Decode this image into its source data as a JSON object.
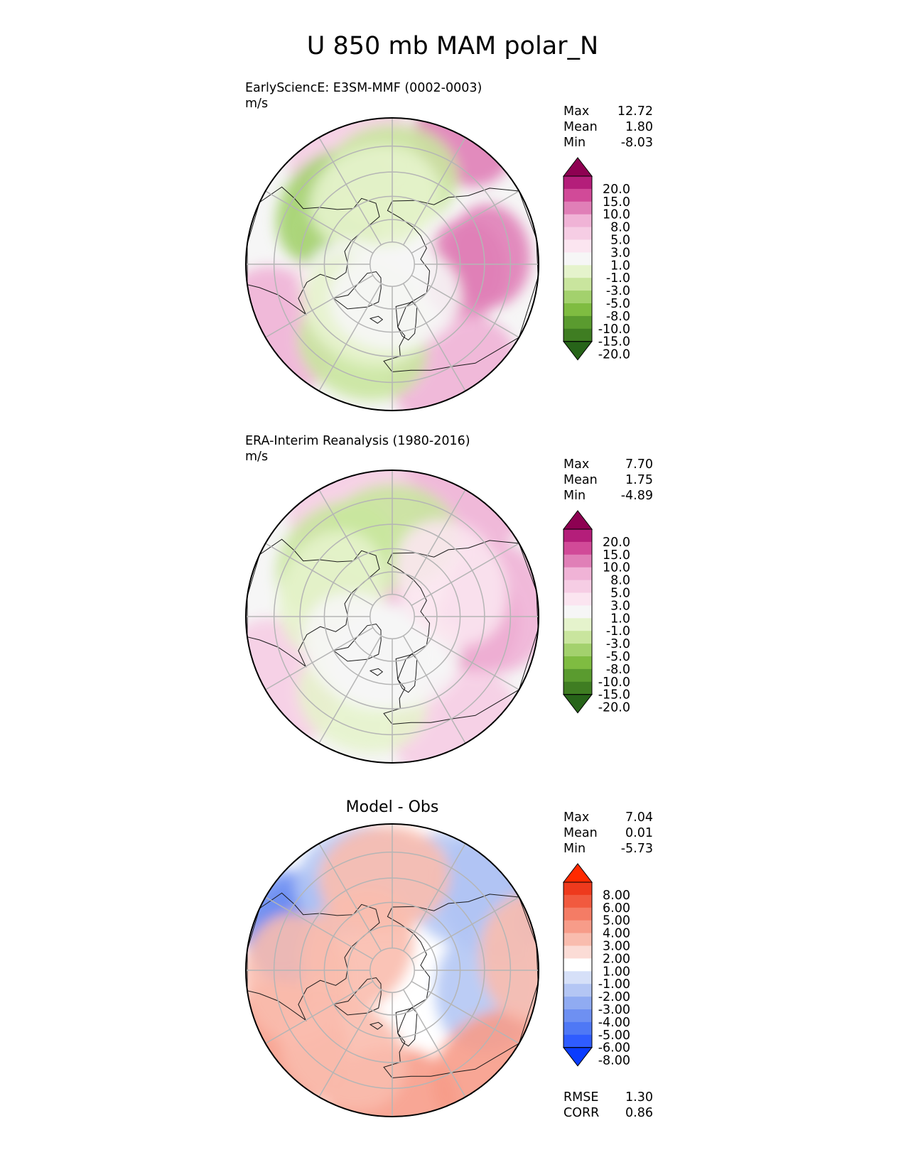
{
  "figure_title": "U 850 mb MAM polar_N",
  "colors": {
    "pink_green": [
      "#276419",
      "#3f7d22",
      "#5a9b2f",
      "#7fbc41",
      "#a3d16d",
      "#c9e59e",
      "#e5f3cc",
      "#f6f6f6",
      "#fbe5f0",
      "#f6cde4",
      "#f0b3d6",
      "#e07fb7",
      "#d14a98",
      "#b41e7a",
      "#8e0152"
    ],
    "blue_red": [
      "#0a3cff",
      "#2f5cff",
      "#4f78f5",
      "#6e90f2",
      "#90abf2",
      "#b4c6f4",
      "#d6e0f8",
      "#ffffff",
      "#fbdcd6",
      "#f9bcae",
      "#f79c89",
      "#f47c65",
      "#f15a3f",
      "#ee3a1d",
      "#ff2a00"
    ],
    "grid": "#b5b5b5",
    "coast": "#1a1a1a"
  },
  "chart_data": [
    {
      "type": "heatmap",
      "projection": "north polar stereographic",
      "title": "EarlySciencE: E3SM-MMF (0002-0003)",
      "units": "m/s",
      "stats": [
        {
          "label": "Max",
          "value": "12.72"
        },
        {
          "label": "Mean",
          "value": "1.80"
        },
        {
          "label": "Min",
          "value": "-8.03"
        }
      ],
      "colorbar_ticks": [
        "20.0",
        "15.0",
        "10.0",
        "8.0",
        "5.0",
        "3.0",
        "1.0",
        "-1.0",
        "-3.0",
        "-5.0",
        "-8.0",
        "-10.0",
        "-15.0",
        "-20.0"
      ],
      "colormap": "pink_green",
      "lat_rings": [
        80,
        70,
        60,
        50,
        40,
        30
      ],
      "lon_lines": [
        0,
        30,
        60,
        90,
        120,
        150,
        180,
        210,
        240,
        270,
        300,
        330
      ],
      "field": [
        {
          "lon": 85,
          "lat": 58,
          "level": 11
        },
        {
          "lon": 95,
          "lat": 48,
          "level": 11
        },
        {
          "lon": 150,
          "lat": 32,
          "level": 11
        },
        {
          "lon": 30,
          "lat": 38,
          "level": 10
        },
        {
          "lon": 300,
          "lat": 36,
          "level": 10
        },
        {
          "lon": 200,
          "lat": 40,
          "level": 9
        },
        {
          "lon": 260,
          "lat": 70,
          "level": 8
        },
        {
          "lon": 255,
          "lat": 85,
          "level": 7
        },
        {
          "lon": 225,
          "lat": 55,
          "level": 4
        },
        {
          "lon": 180,
          "lat": 52,
          "level": 5
        },
        {
          "lon": 195,
          "lat": 60,
          "level": 6
        },
        {
          "lon": 340,
          "lat": 52,
          "level": 5
        },
        {
          "lon": 320,
          "lat": 70,
          "level": 7
        },
        {
          "lon": 330,
          "lat": 66,
          "level": 6
        },
        {
          "lon": 5,
          "lat": 75,
          "level": 7
        }
      ]
    },
    {
      "type": "heatmap",
      "projection": "north polar stereographic",
      "title": "ERA-Interim Reanalysis (1980-2016)",
      "units": "m/s",
      "stats": [
        {
          "label": "Max",
          "value": "7.70"
        },
        {
          "label": "Mean",
          "value": "1.75"
        },
        {
          "label": "Min",
          "value": "-4.89"
        }
      ],
      "colorbar_ticks": [
        "20.0",
        "15.0",
        "10.0",
        "8.0",
        "5.0",
        "3.0",
        "1.0",
        "-1.0",
        "-3.0",
        "-5.0",
        "-8.0",
        "-10.0",
        "-15.0",
        "-20.0"
      ],
      "colormap": "pink_green",
      "lat_rings": [
        80,
        70,
        60,
        50,
        40,
        30
      ],
      "lon_lines": [
        0,
        30,
        60,
        90,
        120,
        150,
        180,
        210,
        240,
        270,
        300,
        330
      ],
      "field": [
        {
          "lon": 85,
          "lat": 52,
          "level": 11
        },
        {
          "lon": 95,
          "lat": 45,
          "level": 10
        },
        {
          "lon": 150,
          "lat": 32,
          "level": 10
        },
        {
          "lon": 30,
          "lat": 38,
          "level": 9
        },
        {
          "lon": 300,
          "lat": 36,
          "level": 9
        },
        {
          "lon": 200,
          "lat": 40,
          "level": 9
        },
        {
          "lon": 265,
          "lat": 73,
          "level": 10
        },
        {
          "lon": 225,
          "lat": 55,
          "level": 5
        },
        {
          "lon": 180,
          "lat": 55,
          "level": 5
        },
        {
          "lon": 250,
          "lat": 62,
          "level": 6
        },
        {
          "lon": 340,
          "lat": 52,
          "level": 6
        },
        {
          "lon": 320,
          "lat": 70,
          "level": 7
        },
        {
          "lon": 5,
          "lat": 72,
          "level": 7
        },
        {
          "lon": 120,
          "lat": 60,
          "level": 8
        }
      ]
    },
    {
      "type": "heatmap",
      "projection": "north polar stereographic",
      "title": "Model - Obs",
      "units": "",
      "stats": [
        {
          "label": "Max",
          "value": "7.04"
        },
        {
          "label": "Mean",
          "value": "0.01"
        },
        {
          "label": "Min",
          "value": "-5.73"
        }
      ],
      "colorbar_ticks": [
        "8.00",
        "6.00",
        "5.00",
        "4.00",
        "3.00",
        "2.00",
        "1.00",
        "-1.00",
        "-2.00",
        "-3.00",
        "-4.00",
        "-5.00",
        "-6.00",
        "-8.00"
      ],
      "colormap": "blue_red",
      "lat_rings": [
        80,
        70,
        60,
        50,
        40,
        30
      ],
      "lon_lines": [
        0,
        30,
        60,
        90,
        120,
        150,
        180,
        210,
        240,
        270,
        300,
        330
      ],
      "metrics": [
        {
          "label": "RMSE",
          "value": "1.30"
        },
        {
          "label": "CORR",
          "value": "0.86"
        }
      ],
      "field": [
        {
          "lon": 250,
          "lat": 45,
          "level": 2
        },
        {
          "lon": 245,
          "lat": 40,
          "level": 3
        },
        {
          "lon": 200,
          "lat": 48,
          "level": 5
        },
        {
          "lon": 125,
          "lat": 38,
          "level": 4
        },
        {
          "lon": 140,
          "lat": 45,
          "level": 5
        },
        {
          "lon": 80,
          "lat": 48,
          "level": 5
        },
        {
          "lon": 0,
          "lat": 36,
          "level": 10
        },
        {
          "lon": 45,
          "lat": 32,
          "level": 10
        },
        {
          "lon": 305,
          "lat": 38,
          "level": 10
        },
        {
          "lon": 275,
          "lat": 48,
          "level": 9
        },
        {
          "lon": 330,
          "lat": 48,
          "level": 9
        },
        {
          "lon": 185,
          "lat": 50,
          "level": 9
        },
        {
          "lon": 95,
          "lat": 32,
          "level": 9
        },
        {
          "lon": 240,
          "lat": 72,
          "level": 9
        }
      ]
    }
  ]
}
